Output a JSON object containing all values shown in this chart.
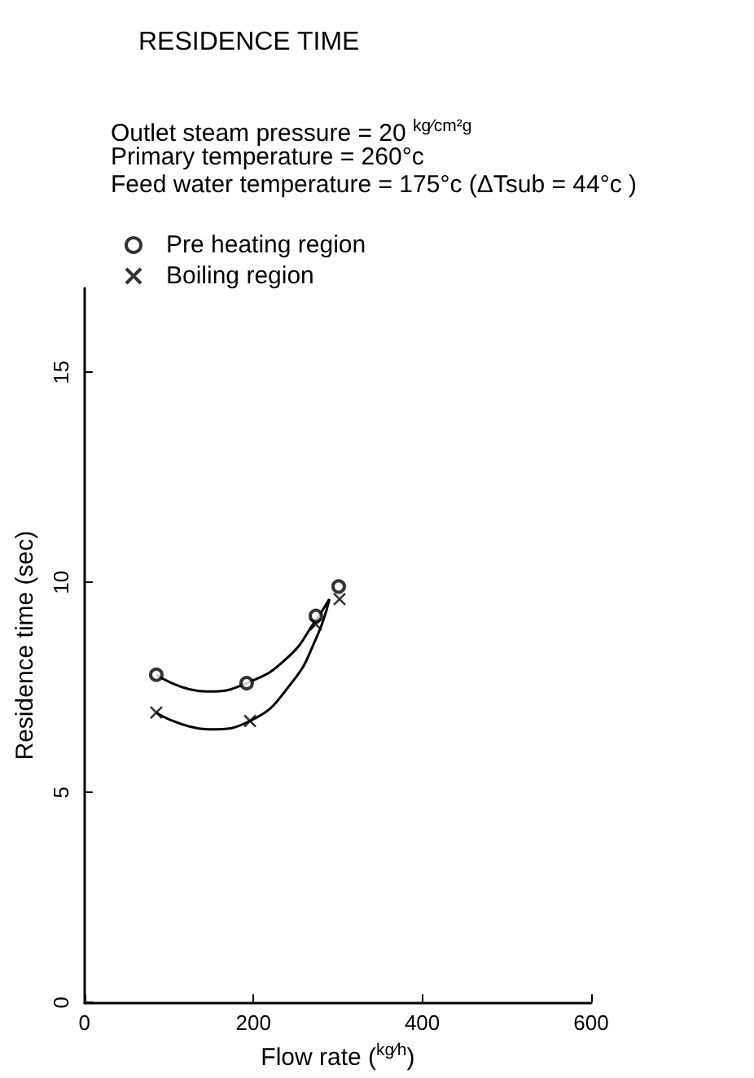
{
  "chart_data": {
    "type": "scatter",
    "title": "RESIDENCE TIME",
    "annotations": [
      "Outlet steam pressure = 20 $^{kg⁄cm²g}$",
      "Primary temperature = 260°c",
      "Feed water temperature = 175°c (ΔTsub = 44°c )"
    ],
    "xlabel": "Flow rate ($^{kg⁄h}$)",
    "ylabel": "Residence time (sec)",
    "xlim": [
      0,
      600
    ],
    "xticks": [
      0,
      200,
      400,
      600
    ],
    "ylim": [
      0,
      17
    ],
    "yticks": [
      0,
      5,
      10,
      15
    ],
    "grid": false,
    "legend": "top left",
    "series": [
      {
        "name": "Pre heating region",
        "marker": "circle",
        "color": "#000000",
        "x": [
          85,
          192,
          274,
          301
        ],
        "values": [
          7.8,
          7.6,
          9.2,
          9.9
        ]
      },
      {
        "name": "Boiling region",
        "marker": "cross",
        "color": "#000000",
        "x": [
          85,
          196,
          274,
          302
        ],
        "values": [
          6.9,
          6.7,
          9.0,
          9.6
        ]
      },
      {
        "type": "line",
        "marker": "none",
        "line_style": "solid",
        "color": "#000000",
        "x": [
          85,
          145,
          192,
          240,
          274,
          290
        ],
        "values": [
          7.8,
          7.4,
          7.6,
          8.2,
          9.1,
          9.6
        ]
      },
      {
        "type": "line",
        "marker": "none",
        "line_style": "solid",
        "color": "#000000",
        "x": [
          85,
          148,
          196,
          245,
          275,
          290
        ],
        "values": [
          6.9,
          6.5,
          6.7,
          7.6,
          8.7,
          9.6
        ]
      }
    ]
  }
}
